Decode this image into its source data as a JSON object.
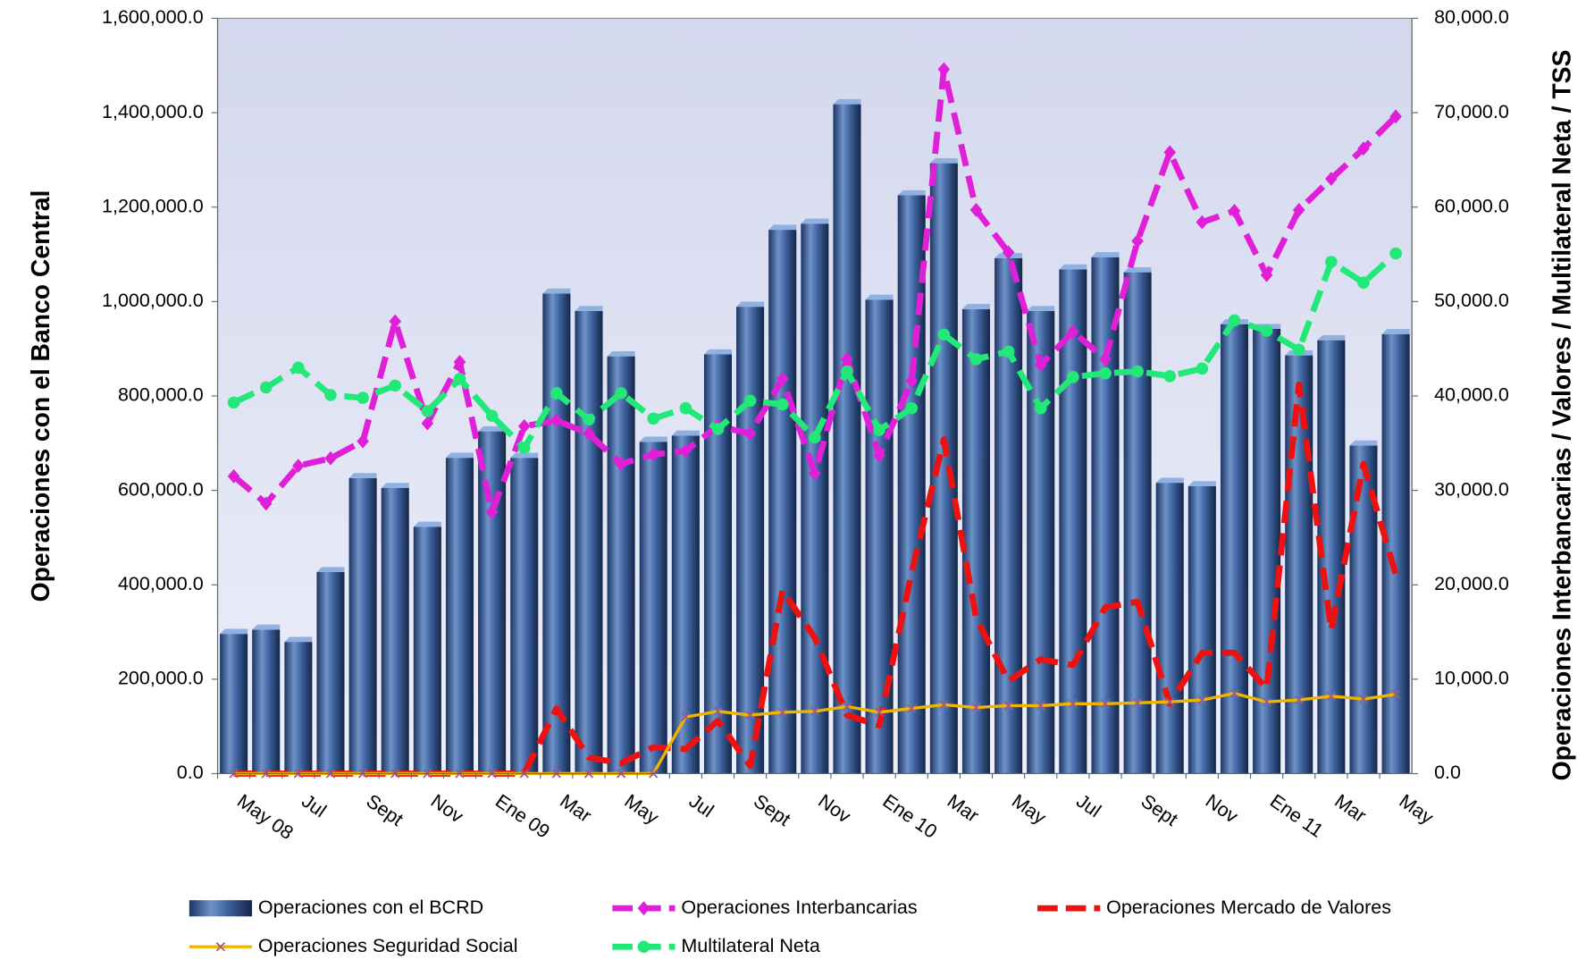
{
  "chart_data": {
    "type": "bar",
    "y_label": "Operaciones con el Banco Central",
    "y2_label": "Operaciones Interbancarias / Valores / Multilateral Neta / TSS",
    "categories": [
      "May 08",
      null,
      "Jul",
      null,
      "Sept",
      null,
      "Nov",
      null,
      "Ene 09",
      null,
      "Mar",
      null,
      "May",
      null,
      "Jul",
      null,
      "Sept",
      null,
      "Nov",
      null,
      "Ene 10",
      null,
      "Mar",
      null,
      "May",
      null,
      "Jul",
      null,
      "Sept",
      null,
      "Nov",
      null,
      "Ene 11",
      null,
      "Mar",
      null,
      "May"
    ],
    "ylim": [
      0,
      1600000
    ],
    "yticks": [
      {
        "value": 0,
        "label": "0.0"
      },
      {
        "value": 200000,
        "label": "200,000.0"
      },
      {
        "value": 400000,
        "label": "400,000.0"
      },
      {
        "value": 600000,
        "label": "600,000.0"
      },
      {
        "value": 800000,
        "label": "800,000.0"
      },
      {
        "value": 1000000,
        "label": "1,000,000.0"
      },
      {
        "value": 1200000,
        "label": "1,200,000.0"
      },
      {
        "value": 1400000,
        "label": "1,400,000.0"
      },
      {
        "value": 1600000,
        "label": "1,600,000.0"
      }
    ],
    "y2lim": [
      0,
      80000
    ],
    "y2ticks": [
      {
        "value": 0,
        "label": "0.0"
      },
      {
        "value": 10000,
        "label": "10,000.0"
      },
      {
        "value": 20000,
        "label": "20,000.0"
      },
      {
        "value": 30000,
        "label": "30,000.0"
      },
      {
        "value": 40000,
        "label": "40,000.0"
      },
      {
        "value": 50000,
        "label": "50,000.0"
      },
      {
        "value": 60000,
        "label": "60,000.0"
      },
      {
        "value": 70000,
        "label": "70,000.0"
      },
      {
        "value": 80000,
        "label": "80,000.0"
      }
    ],
    "series": [
      {
        "name": "Operaciones con el BCRD",
        "type": "bar",
        "color": "#3a5f99",
        "values": [
          296000,
          305000,
          279000,
          427000,
          626000,
          605000,
          523000,
          669000,
          725000,
          669000,
          1017000,
          980000,
          884000,
          703000,
          716000,
          888000,
          989000,
          1152000,
          1165000,
          1418000,
          1004000,
          1225000,
          1293000,
          984000,
          1092000,
          980000,
          1068000,
          1094000,
          1062000,
          616000,
          609000,
          952000,
          942000,
          886000,
          918000,
          695000,
          931000
        ]
      },
      {
        "name": "Operaciones Interbancarias",
        "type": "line",
        "axis": "y2",
        "color": "#e020d8",
        "dash": true,
        "marker": "diamond",
        "values": [
          31500,
          28600,
          32600,
          33400,
          35200,
          47900,
          37100,
          43600,
          27700,
          36800,
          37400,
          36000,
          32800,
          33800,
          34200,
          36800,
          36000,
          41800,
          31800,
          43900,
          33700,
          41600,
          74600,
          59700,
          55200,
          43300,
          46800,
          43900,
          56400,
          65800,
          58400,
          59600,
          52800,
          59700,
          63000,
          66200,
          69600
        ]
      },
      {
        "name": "Operaciones Mercado de Valores",
        "type": "line",
        "axis": "y2",
        "color": "#ee1111",
        "dash": true,
        "marker": "none",
        "values": [
          0,
          0,
          0,
          0,
          0,
          0,
          0,
          0,
          0,
          0,
          6900,
          1700,
          1100,
          2800,
          2600,
          5600,
          800,
          19400,
          14400,
          6200,
          5100,
          21300,
          35400,
          16500,
          9800,
          12100,
          11500,
          17600,
          18200,
          7400,
          12800,
          12800,
          9000,
          41200,
          15200,
          32800,
          21100
        ]
      },
      {
        "name": "Operaciones Seguridad Social",
        "type": "line",
        "axis": "y2",
        "color": "#f0b400",
        "dash": false,
        "marker": "x",
        "values": [
          0,
          0,
          0,
          0,
          0,
          0,
          0,
          0,
          0,
          0,
          0,
          0,
          0,
          0,
          6000,
          6600,
          6200,
          6500,
          6600,
          7100,
          6500,
          6900,
          7300,
          7000,
          7200,
          7200,
          7400,
          7400,
          7500,
          7600,
          7800,
          8500,
          7600,
          7800,
          8200,
          7900,
          8400
        ]
      },
      {
        "name": "Multilateral Neta",
        "type": "line",
        "axis": "y2",
        "color": "#22e878",
        "dash": true,
        "marker": "circle",
        "values": [
          39300,
          40900,
          43000,
          40100,
          39800,
          41100,
          38400,
          41800,
          37900,
          34500,
          40300,
          37500,
          40300,
          37600,
          38700,
          36500,
          39500,
          39100,
          35600,
          42600,
          36400,
          38700,
          46500,
          43900,
          44700,
          38700,
          42000,
          42400,
          42600,
          42100,
          42900,
          48000,
          46900,
          44900,
          54200,
          52000,
          55100
        ]
      }
    ]
  }
}
